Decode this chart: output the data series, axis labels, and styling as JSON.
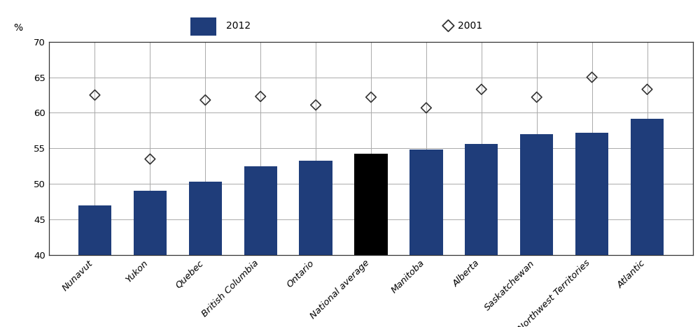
{
  "categories": [
    "Nunavut",
    "Yukon",
    "Quebec",
    "British Columbia",
    "Ontario",
    "National average",
    "Manitoba",
    "Alberta",
    "Saskatchewan",
    "Northwest Territories",
    "Atlantic"
  ],
  "bar_values": [
    47.0,
    49.0,
    50.3,
    52.5,
    53.3,
    54.2,
    54.8,
    55.6,
    57.0,
    57.2,
    59.2
  ],
  "diamond_values": [
    62.5,
    53.5,
    61.8,
    62.3,
    61.1,
    62.2,
    60.7,
    63.3,
    62.2,
    65.0,
    63.3
  ],
  "bar_colors": [
    "#1f3d7a",
    "#1f3d7a",
    "#1f3d7a",
    "#1f3d7a",
    "#1f3d7a",
    "#000000",
    "#1f3d7a",
    "#1f3d7a",
    "#1f3d7a",
    "#1f3d7a",
    "#1f3d7a"
  ],
  "ylim": [
    40,
    70
  ],
  "yticks": [
    40,
    45,
    50,
    55,
    60,
    65,
    70
  ],
  "ylabel": "%",
  "legend_bar_label": "2012",
  "legend_diamond_label": "2001",
  "bar_color_legend": "#1f3d7a",
  "grid_color": "#aaaaaa",
  "plot_bg_color": "#ffffff",
  "header_bg_color": "#d0d0d0",
  "tick_fontsize": 9.5,
  "ylabel_fontsize": 10
}
